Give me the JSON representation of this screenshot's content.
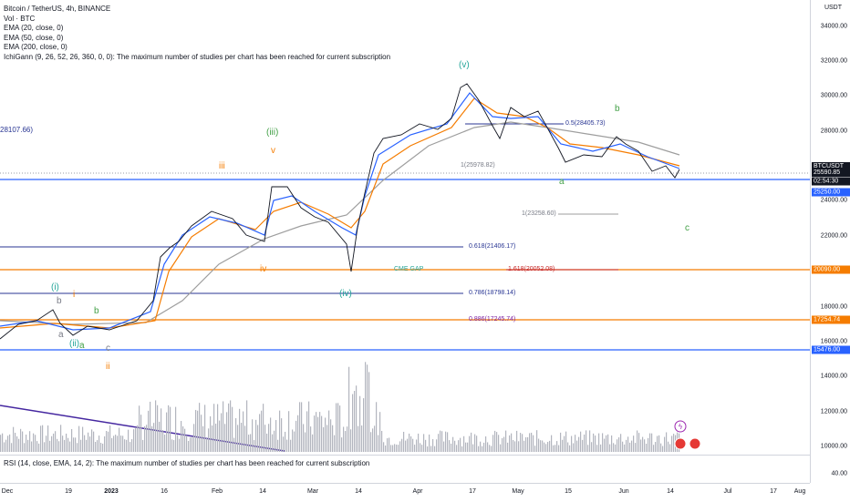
{
  "legend": {
    "title": "Bitcoin / TetherUS, 4h, BINANCE",
    "volume": "Vol · BTC",
    "ema20": "EMA (20, close, 0)",
    "ema50": "EMA (50, close, 0)",
    "ema200": "EMA (200, close, 0)",
    "ichigann": "IchiGann (9, 26, 52, 26, 360, 0, 0): The maximum number of studies per chart has been reached for current subscription"
  },
  "rsi": {
    "legend": "RSI (14, close, EMA, 14, 2): The maximum number of studies per chart has been reached for current subscription",
    "tick": "40.00"
  },
  "price_axis": {
    "unit": "USDT",
    "ticks": [
      "34000.00",
      "32000.00",
      "30000.00",
      "28000.00",
      "26000.00",
      "24000.00",
      "22000.00",
      "18000.00",
      "16000.00",
      "14000.00",
      "12000.00",
      "10000.00"
    ],
    "tags": [
      {
        "text": "BTCUSDT",
        "color": "#131722"
      },
      {
        "text": "25590.85",
        "color": "#131722"
      },
      {
        "text": "02:54:30",
        "color": "#131722"
      },
      {
        "text": "25250.00",
        "color": "#2962ff"
      },
      {
        "text": "20090.00",
        "color": "#f57c00"
      },
      {
        "text": "17254.74",
        "color": "#f57c00"
      },
      {
        "text": "15476.00",
        "color": "#2962ff"
      }
    ]
  },
  "time_axis": [
    "Dec",
    "19",
    "2023",
    "16",
    "Feb",
    "14",
    "Mar",
    "14",
    "Apr",
    "17",
    "May",
    "15",
    "Jun",
    "14",
    "Jul",
    "17",
    "Aug"
  ],
  "fib": {
    "left_label": "28107.66)",
    "r05": "0.5(28405.73)",
    "r1a": "1(25978.82)",
    "r1b": "1(23258.60)",
    "r618": "0.618(21406.17)",
    "gap": "CME GAP",
    "r1618": "1.618(20052.08)",
    "r786": "0.786(18798.14)",
    "r886": "0.886(17245.74)"
  },
  "waves": {
    "v": "(v)",
    "iii": "(iii)",
    "iv": "(iv)",
    "i": "(i)",
    "ii": "(ii)",
    "v_small": "v",
    "iii_small": "iii",
    "iv_small": "iv",
    "i_small": "i",
    "ii_small": "ii",
    "a": "a",
    "b": "b",
    "c": "c",
    "b_green": "b",
    "a_green": "a",
    "c_green": "c",
    "b_top": "b",
    "a_bot": "a",
    "c_bot": "c"
  },
  "colors": {
    "blue": "#2962ff",
    "orange": "#f57c00",
    "navy": "#283593",
    "purple": "#7b1fa2",
    "teal": "#26a69a",
    "grey": "#9e9e9e"
  }
}
